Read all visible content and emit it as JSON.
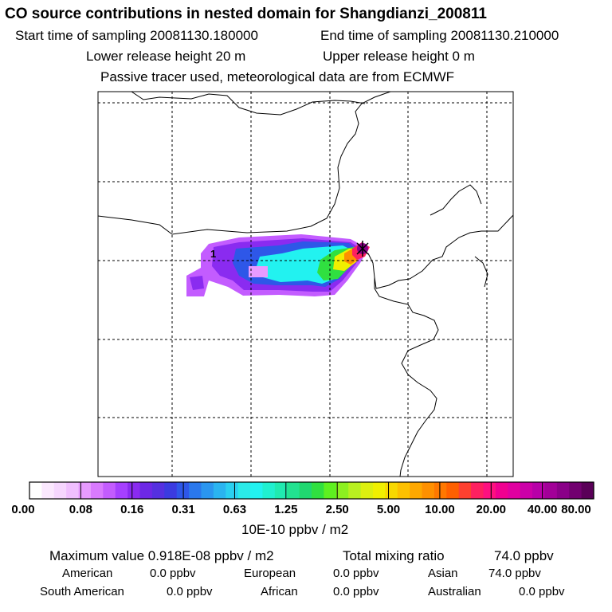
{
  "header": {
    "title": "CO  source contributions in nested domain for Shangdianzi_200811",
    "start_label": "Start time of sampling 20081130.180000",
    "end_label": "End time of sampling 20081130.210000",
    "lower_label": "Lower release height   20 m",
    "upper_label": "Upper release height    0 m",
    "tracer_label": "Passive tracer used, meteorological data are from ECMWF"
  },
  "chart_data": {
    "type": "heatmap",
    "title": "CO  source contributions in nested domain for Shangdianzi_200811",
    "colorbar": {
      "unit_label": "10E-10 ppbv / m2",
      "tick_labels": [
        "0.00",
        "0.08",
        "0.16",
        "0.31",
        "0.63",
        "1.25",
        "2.50",
        "5.00",
        "10.00",
        "20.00",
        "40.00",
        "80.00"
      ],
      "colors": [
        "#ffffff",
        "#fbe8ff",
        "#f6d6ff",
        "#f0bfff",
        "#e79bff",
        "#d97aff",
        "#c35cff",
        "#a640ff",
        "#8a2bf0",
        "#6d28e6",
        "#5530e0",
        "#3b3be0",
        "#2e57e8",
        "#2a78ec",
        "#2a96ef",
        "#2ab4f0",
        "#2ad0f0",
        "#2aeae8",
        "#22f2f0",
        "#20f0d0",
        "#20eab0",
        "#22e290",
        "#20d870",
        "#30e040",
        "#5ef020",
        "#8cf020",
        "#b8f020",
        "#dcf010",
        "#f0f000",
        "#f8d800",
        "#fcc000",
        "#ffa800",
        "#ff9000",
        "#ff7800",
        "#ff6000",
        "#ff4030",
        "#ff2060",
        "#ff1080",
        "#f00090",
        "#e000a0",
        "#cc00a8",
        "#b800a8",
        "#a20098",
        "#8a0088",
        "#720070",
        "#5a0058"
      ],
      "ticks_per_decade": 3
    },
    "receptor_marker": "Shangdianzi",
    "grid": true
  },
  "footer": {
    "max_label": "Maximum value  0.918E-08 ppbv / m2",
    "total_label": "Total mixing ratio",
    "total_value": "74.0 ppbv",
    "sources": [
      {
        "name": "American",
        "value": "0.0 ppbv"
      },
      {
        "name": "European",
        "value": "0.0 ppbv"
      },
      {
        "name": "Asian",
        "value": "74.0 ppbv"
      },
      {
        "name": "South American",
        "value": "0.0 ppbv"
      },
      {
        "name": "African",
        "value": "0.0 ppbv"
      },
      {
        "name": "Australian",
        "value": "0.0 ppbv"
      }
    ]
  }
}
